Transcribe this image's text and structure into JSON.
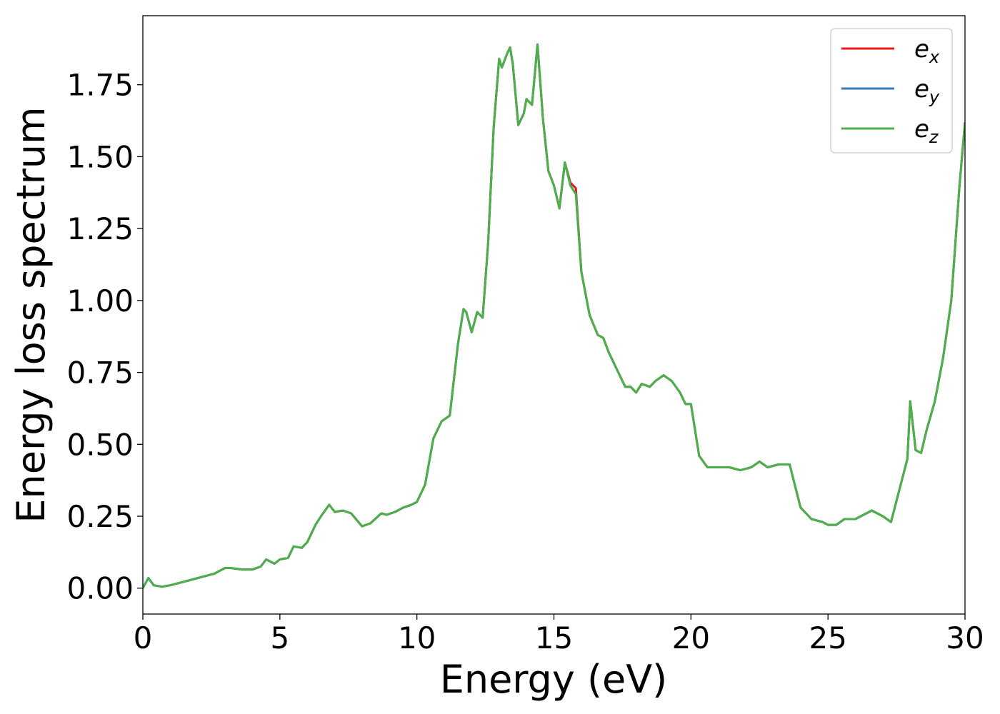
{
  "chart_data": {
    "type": "line",
    "xlabel": "Energy (eV)",
    "ylabel": "Energy loss spectrum",
    "xlim": [
      0,
      30
    ],
    "ylim": [
      -0.09,
      1.99
    ],
    "xticks": [
      0,
      5,
      10,
      15,
      20,
      25,
      30
    ],
    "yticks": [
      0.0,
      0.25,
      0.5,
      0.75,
      1.0,
      1.25,
      1.5,
      1.75
    ],
    "xtick_labels": [
      "0",
      "5",
      "10",
      "15",
      "20",
      "25",
      "30"
    ],
    "ytick_labels": [
      "0.00",
      "0.25",
      "0.50",
      "0.75",
      "1.00",
      "1.25",
      "1.50",
      "1.75"
    ],
    "grid": false,
    "legend_position": "top-right",
    "legend": [
      {
        "base": "e",
        "sub": "x",
        "color": "#e41a1c"
      },
      {
        "base": "e",
        "sub": "y",
        "color": "#377eb8"
      },
      {
        "base": "e",
        "sub": "z",
        "color": "#4daf4a"
      }
    ],
    "x": [
      0,
      0.2,
      0.4,
      0.7,
      1.0,
      1.4,
      1.8,
      2.2,
      2.6,
      3.0,
      3.2,
      3.6,
      4.0,
      4.3,
      4.5,
      4.8,
      5.0,
      5.3,
      5.5,
      5.8,
      6.0,
      6.3,
      6.5,
      6.8,
      7.0,
      7.3,
      7.6,
      8.0,
      8.3,
      8.7,
      8.9,
      9.2,
      9.5,
      9.8,
      10.0,
      10.3,
      10.6,
      10.9,
      11.2,
      11.5,
      11.7,
      11.8,
      12.0,
      12.2,
      12.4,
      12.6,
      12.8,
      13.0,
      13.1,
      13.3,
      13.4,
      13.5,
      13.7,
      13.9,
      14.0,
      14.2,
      14.4,
      14.6,
      14.8,
      15.0,
      15.2,
      15.4,
      15.6,
      15.8,
      16.0,
      16.3,
      16.6,
      16.8,
      17.0,
      17.3,
      17.6,
      17.8,
      18.0,
      18.2,
      18.5,
      18.7,
      19.0,
      19.3,
      19.6,
      19.8,
      20.0,
      20.3,
      20.6,
      21.0,
      21.4,
      21.8,
      22.2,
      22.5,
      22.8,
      23.2,
      23.6,
      24.0,
      24.4,
      24.8,
      25.0,
      25.3,
      25.6,
      26.0,
      26.4,
      26.6,
      27.0,
      27.3,
      27.6,
      27.9,
      28.0,
      28.2,
      28.4,
      28.6,
      28.9,
      29.2,
      29.5,
      29.8,
      30.0
    ],
    "series": [
      {
        "name": "e_x",
        "color": "#e41a1c",
        "values": [
          0.0,
          0.035,
          0.01,
          0.005,
          0.01,
          0.02,
          0.03,
          0.04,
          0.05,
          0.07,
          0.07,
          0.065,
          0.065,
          0.075,
          0.1,
          0.085,
          0.1,
          0.105,
          0.145,
          0.14,
          0.16,
          0.22,
          0.25,
          0.29,
          0.265,
          0.27,
          0.26,
          0.215,
          0.225,
          0.26,
          0.255,
          0.265,
          0.28,
          0.29,
          0.3,
          0.36,
          0.52,
          0.58,
          0.6,
          0.85,
          0.97,
          0.96,
          0.89,
          0.96,
          0.94,
          1.2,
          1.6,
          1.84,
          1.81,
          1.86,
          1.88,
          1.82,
          1.61,
          1.65,
          1.7,
          1.68,
          1.89,
          1.63,
          1.45,
          1.4,
          1.32,
          1.48,
          1.41,
          1.39,
          1.1,
          0.95,
          0.88,
          0.87,
          0.82,
          0.76,
          0.7,
          0.7,
          0.68,
          0.71,
          0.7,
          0.72,
          0.74,
          0.72,
          0.68,
          0.64,
          0.64,
          0.46,
          0.42,
          0.42,
          0.42,
          0.41,
          0.42,
          0.44,
          0.42,
          0.43,
          0.43,
          0.28,
          0.24,
          0.23,
          0.22,
          0.22,
          0.24,
          0.24,
          0.26,
          0.27,
          0.25,
          0.23,
          0.34,
          0.45,
          0.65,
          0.48,
          0.47,
          0.55,
          0.65,
          0.8,
          1.0,
          1.4,
          1.62
        ]
      },
      {
        "name": "e_y",
        "color": "#377eb8",
        "values": [
          0.0,
          0.035,
          0.01,
          0.005,
          0.01,
          0.02,
          0.03,
          0.04,
          0.05,
          0.07,
          0.07,
          0.065,
          0.065,
          0.075,
          0.1,
          0.085,
          0.1,
          0.105,
          0.145,
          0.14,
          0.16,
          0.22,
          0.25,
          0.29,
          0.265,
          0.27,
          0.26,
          0.215,
          0.225,
          0.26,
          0.255,
          0.265,
          0.28,
          0.29,
          0.3,
          0.36,
          0.52,
          0.58,
          0.6,
          0.85,
          0.97,
          0.96,
          0.89,
          0.96,
          0.94,
          1.2,
          1.6,
          1.84,
          1.81,
          1.86,
          1.88,
          1.82,
          1.61,
          1.65,
          1.7,
          1.68,
          1.89,
          1.63,
          1.45,
          1.4,
          1.32,
          1.48,
          1.4,
          1.37,
          1.1,
          0.95,
          0.88,
          0.87,
          0.82,
          0.76,
          0.7,
          0.7,
          0.68,
          0.71,
          0.7,
          0.72,
          0.74,
          0.72,
          0.68,
          0.64,
          0.64,
          0.46,
          0.42,
          0.42,
          0.42,
          0.41,
          0.42,
          0.44,
          0.42,
          0.43,
          0.43,
          0.28,
          0.24,
          0.23,
          0.22,
          0.22,
          0.24,
          0.24,
          0.26,
          0.27,
          0.25,
          0.23,
          0.34,
          0.45,
          0.65,
          0.48,
          0.47,
          0.55,
          0.65,
          0.8,
          1.0,
          1.4,
          1.62
        ]
      },
      {
        "name": "e_z",
        "color": "#4daf4a",
        "values": [
          0.0,
          0.035,
          0.01,
          0.005,
          0.01,
          0.02,
          0.03,
          0.04,
          0.05,
          0.07,
          0.07,
          0.065,
          0.065,
          0.075,
          0.1,
          0.085,
          0.1,
          0.105,
          0.145,
          0.14,
          0.16,
          0.22,
          0.25,
          0.29,
          0.265,
          0.27,
          0.26,
          0.215,
          0.225,
          0.26,
          0.255,
          0.265,
          0.28,
          0.29,
          0.3,
          0.36,
          0.52,
          0.58,
          0.6,
          0.85,
          0.97,
          0.96,
          0.89,
          0.96,
          0.94,
          1.2,
          1.6,
          1.84,
          1.81,
          1.86,
          1.88,
          1.82,
          1.61,
          1.65,
          1.7,
          1.68,
          1.89,
          1.63,
          1.45,
          1.4,
          1.32,
          1.48,
          1.4,
          1.37,
          1.1,
          0.95,
          0.88,
          0.87,
          0.82,
          0.76,
          0.7,
          0.7,
          0.68,
          0.71,
          0.7,
          0.72,
          0.74,
          0.72,
          0.68,
          0.64,
          0.64,
          0.46,
          0.42,
          0.42,
          0.42,
          0.41,
          0.42,
          0.44,
          0.42,
          0.43,
          0.43,
          0.28,
          0.24,
          0.23,
          0.22,
          0.22,
          0.24,
          0.24,
          0.26,
          0.27,
          0.25,
          0.23,
          0.34,
          0.45,
          0.65,
          0.48,
          0.47,
          0.55,
          0.65,
          0.8,
          1.0,
          1.4,
          1.62
        ]
      }
    ]
  }
}
